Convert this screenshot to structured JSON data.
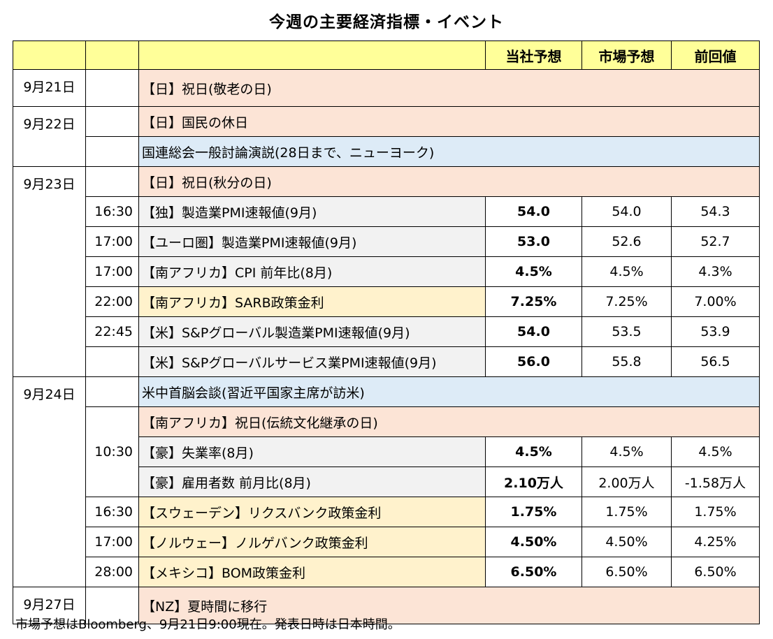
{
  "title": "今週の主要経済指標・イベント",
  "headers": {
    "forecast": "当社予想",
    "market": "市場予想",
    "previous": "前回値"
  },
  "dates": {
    "d21": "9月21日",
    "d22": "9月22日",
    "d23": "9月23日",
    "d24": "9月24日",
    "d27": "9月27日"
  },
  "rows": [
    {
      "time": "",
      "event": "【日】祝日(敬老の日)"
    },
    {
      "time": "",
      "event": "【日】国民の休日"
    },
    {
      "time": "",
      "event": "国連総会一般討論演説(28日まで、ニューヨーク)"
    },
    {
      "time": "",
      "event": "【日】祝日(秋分の日)"
    },
    {
      "time": "16:30",
      "event": "【独】製造業PMI速報値(9月)",
      "forecast": "54.0",
      "market": "54.0",
      "previous": "54.3"
    },
    {
      "time": "17:00",
      "event": "【ユーロ圏】製造業PMI速報値(9月)",
      "forecast": "53.0",
      "market": "52.6",
      "previous": "52.7"
    },
    {
      "time": "17:00",
      "event": "【南アフリカ】CPI 前年比(8月)",
      "forecast": "4.5%",
      "market": "4.5%",
      "previous": "4.3%"
    },
    {
      "time": "22:00",
      "event": "【南アフリカ】SARB政策金利",
      "forecast": "7.25%",
      "market": "7.25%",
      "previous": "7.00%"
    },
    {
      "time": "22:45",
      "event": "【米】S&Pグローバル製造業PMI速報値(9月)",
      "forecast": "54.0",
      "market": "53.5",
      "previous": "53.9"
    },
    {
      "time": "",
      "event": "【米】S&Pグローバルサービス業PMI速報値(9月)",
      "forecast": "56.0",
      "market": "55.8",
      "previous": "56.5"
    },
    {
      "time": "",
      "event": "米中首脳会談(習近平国家主席が訪米)"
    },
    {
      "time": "",
      "event": "【南アフリカ】祝日(伝統文化継承の日)"
    },
    {
      "time": "10:30",
      "event": "【豪】失業率(8月)",
      "forecast": "4.5%",
      "market": "4.5%",
      "previous": "4.5%"
    },
    {
      "time": "",
      "event": "【豪】雇用者数 前月比(8月)",
      "forecast": "2.10万人",
      "market": "2.00万人",
      "previous": "-1.58万人"
    },
    {
      "time": "16:30",
      "event": "【スウェーデン】リクスバンク政策金利",
      "forecast": "1.75%",
      "market": "1.75%",
      "previous": "1.75%"
    },
    {
      "time": "17:00",
      "event": "【ノルウェー】ノルゲバンク政策金利",
      "forecast": "4.50%",
      "market": "4.50%",
      "previous": "4.25%"
    },
    {
      "time": "28:00",
      "event": "【メキシコ】BOM政策金利",
      "forecast": "6.50%",
      "market": "6.50%",
      "previous": "6.50%"
    },
    {
      "time": "",
      "event": "【NZ】夏時間に移行"
    }
  ],
  "footer": "市場予想はBloomberg、9月21日9:00現在。発表日時は日本時間。",
  "colors": {
    "header": "#ffff99",
    "holiday": "#fce4d6",
    "event": "#ddebf7",
    "indicator": "#f2f2f2",
    "policy_rate": "#fff2cc"
  }
}
